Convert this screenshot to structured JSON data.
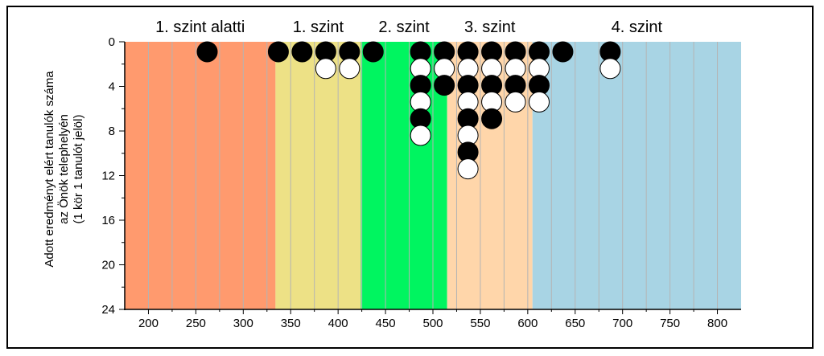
{
  "chart_data": {
    "type": "scatter",
    "xlim": [
      175,
      825
    ],
    "ylim": [
      0,
      24
    ],
    "x_ticks": [
      200,
      250,
      300,
      350,
      400,
      450,
      500,
      550,
      600,
      650,
      700,
      750,
      800
    ],
    "y_ticks": [
      0,
      4,
      8,
      12,
      16,
      20,
      24
    ],
    "y_inverted": true,
    "ylabel_lines": [
      "Adott eredményt elért tanulók száma",
      "az Önök telephelyén",
      "(1 kör 1 tanulót jelöl)"
    ],
    "levels": [
      {
        "label": "1. szint alatti",
        "from": 175,
        "to": 334,
        "color": "#FF9A6E"
      },
      {
        "label": "1. szint",
        "from": 334,
        "to": 424,
        "color": "#EDE186"
      },
      {
        "label": "2. szint",
        "from": 424,
        "to": 515,
        "color": "#00F560"
      },
      {
        "label": "3. szint",
        "from": 515,
        "to": 605,
        "color": "#FFD6AA"
      },
      {
        "label": "4. szint",
        "from": 605,
        "to": 825,
        "color": "#A8D4E4"
      }
    ],
    "columns": [
      {
        "x": 262,
        "markers": [
          "black"
        ]
      },
      {
        "x": 337,
        "markers": [
          "black"
        ]
      },
      {
        "x": 362,
        "markers": [
          "black"
        ]
      },
      {
        "x": 387,
        "markers": [
          "black",
          "white"
        ]
      },
      {
        "x": 412,
        "markers": [
          "black",
          "white"
        ]
      },
      {
        "x": 437,
        "markers": [
          "black"
        ]
      },
      {
        "x": 487,
        "markers": [
          "black",
          "white",
          "black",
          "white",
          "black",
          "white"
        ]
      },
      {
        "x": 512,
        "markers": [
          "black",
          "white",
          "black"
        ]
      },
      {
        "x": 537,
        "markers": [
          "black",
          "white",
          "black",
          "white",
          "black",
          "white",
          "black",
          "white"
        ]
      },
      {
        "x": 562,
        "markers": [
          "black",
          "white",
          "black",
          "white",
          "black"
        ]
      },
      {
        "x": 587,
        "markers": [
          "black",
          "white",
          "black",
          "white"
        ]
      },
      {
        "x": 612,
        "markers": [
          "black",
          "white",
          "black",
          "white"
        ]
      },
      {
        "x": 637,
        "markers": [
          "black"
        ]
      },
      {
        "x": 687,
        "markers": [
          "black",
          "white"
        ]
      }
    ],
    "marker_colors": {
      "black": "#000000",
      "white": "#FFFFFF"
    },
    "grid_color": "#B4B4B4"
  }
}
